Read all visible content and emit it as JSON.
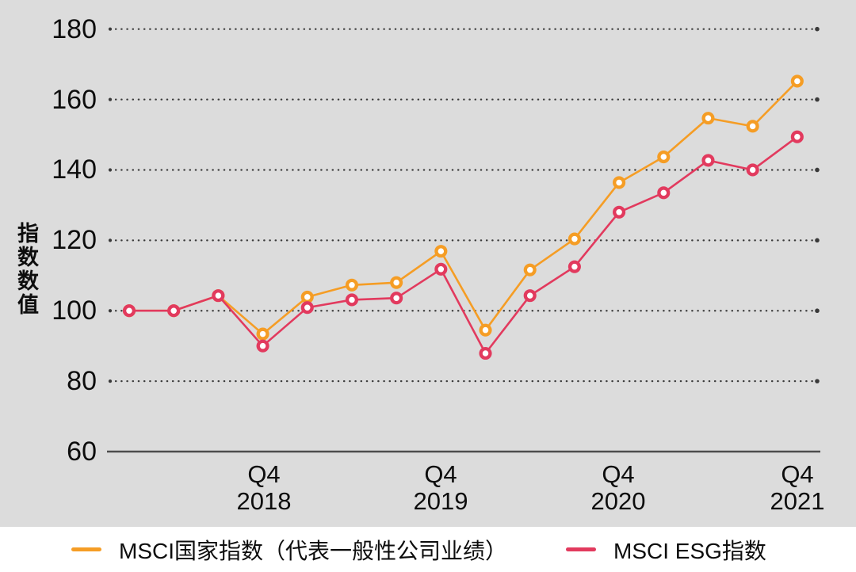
{
  "y_axis": {
    "title": "指数数值",
    "ticks": [
      "180",
      "160",
      "140",
      "120",
      "100",
      "80",
      "60"
    ]
  },
  "x_axis": {
    "labels": [
      {
        "line1": "Q4",
        "line2": "2018"
      },
      {
        "line1": "Q4",
        "line2": "2019"
      },
      {
        "line1": "Q4",
        "line2": "2020"
      },
      {
        "line1": "Q4",
        "line2": "2021"
      }
    ]
  },
  "legend": {
    "items": [
      {
        "label": "MSCI国家指数（代表一般性公司业绩）",
        "color": "#F59D25"
      },
      {
        "label": "MSCI ESG指数",
        "color": "#E23A5E"
      }
    ]
  },
  "colors": {
    "panel_background": "#dcdcdc",
    "legend_background": "#ffffff",
    "gridline": "#3a3a3a",
    "axis_line": "#4d4d4d",
    "text": "#0d0d0d",
    "marker_fill": "#ffffff"
  },
  "chart_data": {
    "type": "line",
    "title": "",
    "xlabel": "",
    "ylabel": "指数数值",
    "ylim": [
      60,
      180
    ],
    "yticks": [
      60,
      80,
      100,
      120,
      140,
      160,
      180
    ],
    "grid": "horizontal dotted",
    "legend_position": "bottom",
    "x": [
      "2018 Q1",
      "2018 Q2",
      "2018 Q3",
      "2018 Q4",
      "2019 Q1",
      "2019 Q2",
      "2019 Q3",
      "2019 Q4",
      "2020 Q1",
      "2020 Q2",
      "2020 Q3",
      "2020 Q4",
      "2021 Q1",
      "2021 Q2",
      "2021 Q3",
      "2021 Q4"
    ],
    "xtick_indices": [
      3,
      7,
      11,
      15
    ],
    "xtick_labels": [
      "Q4 2018",
      "Q4 2019",
      "Q4 2020",
      "Q4 2021"
    ],
    "series": [
      {
        "name": "MSCI国家指数（代表一般性公司业绩）",
        "color": "#F59D25",
        "values": [
          100,
          100,
          104.3,
          93.4,
          103.9,
          107.3,
          108.0,
          116.9,
          94.5,
          111.6,
          120.4,
          136.4,
          143.7,
          154.7,
          152.4,
          165.2
        ]
      },
      {
        "name": "MSCI ESG指数",
        "color": "#E23A5E",
        "values": [
          100,
          100,
          104.3,
          90.0,
          100.9,
          103.1,
          103.6,
          111.8,
          87.9,
          104.3,
          112.5,
          128.0,
          133.5,
          142.7,
          140.0,
          149.4
        ]
      }
    ]
  }
}
